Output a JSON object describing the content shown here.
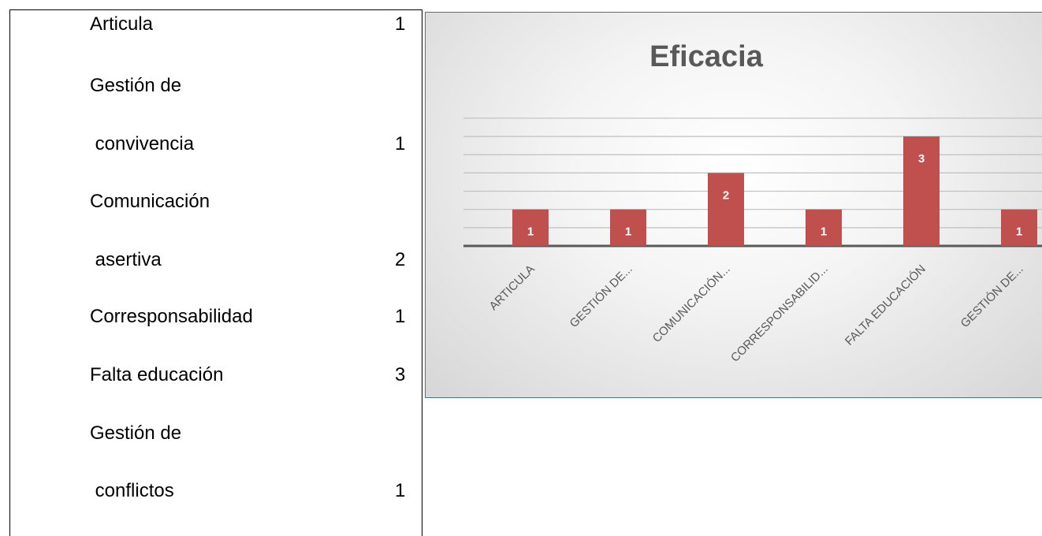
{
  "table": {
    "rows": [
      {
        "lines": [
          "Articula"
        ],
        "value": "1"
      },
      {
        "lines": [
          "Gestión de",
          " convivencia"
        ],
        "value": "1"
      },
      {
        "lines": [
          "Comunicación",
          " asertiva"
        ],
        "value": "2"
      },
      {
        "lines": [
          "Corresponsabilidad"
        ],
        "value": "1"
      },
      {
        "lines": [
          "Falta educación"
        ],
        "value": "3"
      },
      {
        "lines": [
          "Gestión de",
          " conflictos"
        ],
        "value": "1"
      }
    ]
  },
  "chart_data": {
    "type": "bar",
    "title": "Eficacia",
    "categories": [
      "ARTICULA",
      "GESTIÓN DE...",
      "COMUNICACIÓN...",
      "CORRESPONSABILID...",
      "FALTA EDUCACIÓN",
      "GESTIÓN DE..."
    ],
    "values": [
      1,
      1,
      2,
      1,
      3,
      1
    ],
    "data_labels": [
      "1",
      "1",
      "2",
      "1",
      "3",
      "1"
    ],
    "ylim": [
      0,
      3.5
    ],
    "grid": true,
    "legend": "none",
    "colors": {
      "bar": "#c0504d",
      "label": "#ffffff",
      "title": "#595959",
      "axis": "#595959",
      "grid": "#bfbfbf"
    }
  }
}
